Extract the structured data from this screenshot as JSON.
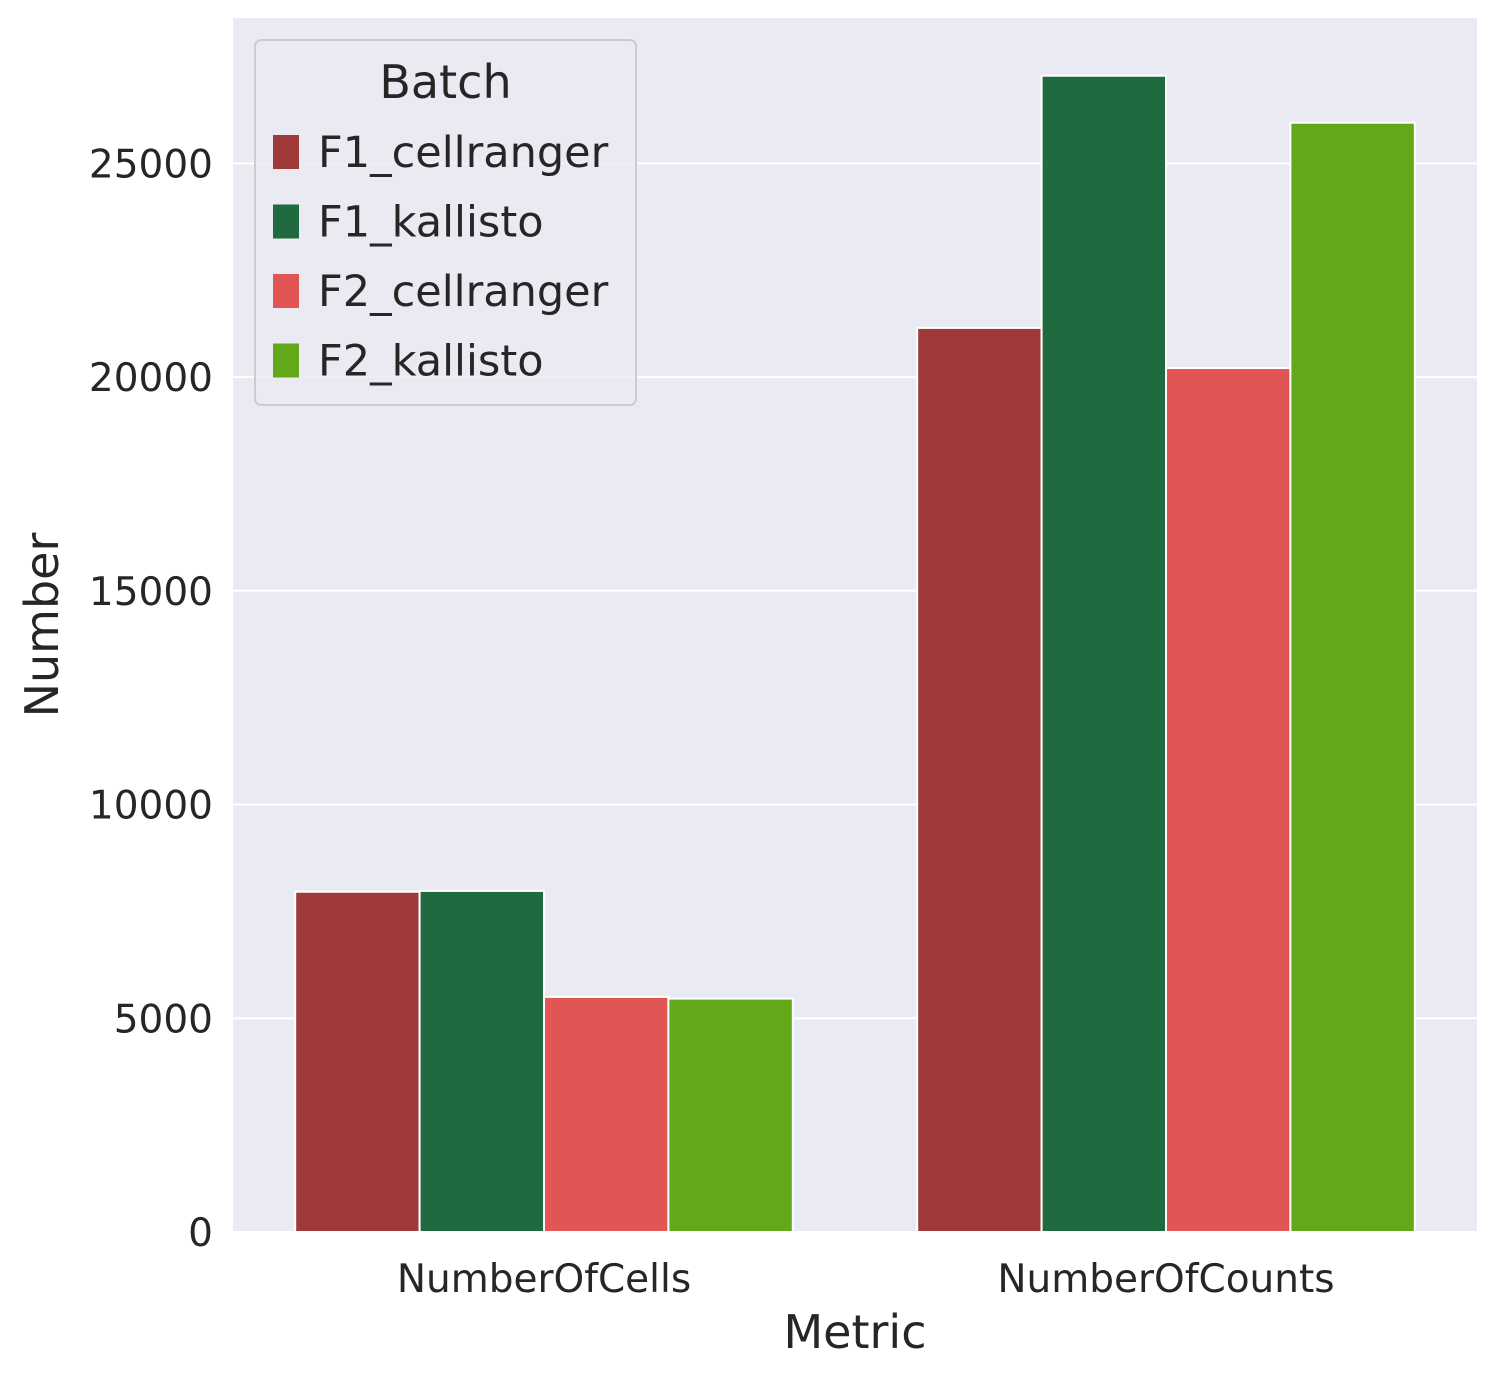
{
  "chart_data": {
    "type": "bar",
    "xlabel": "Metric",
    "ylabel": "Number",
    "categories": [
      "NumberOfCells",
      "NumberOfCounts"
    ],
    "series": [
      {
        "name": "F1_cellranger",
        "color": "#9e3a3a",
        "values": [
          7960,
          21150
        ]
      },
      {
        "name": "F1_kallisto",
        "color": "#1f6b3f",
        "values": [
          7980,
          27050
        ]
      },
      {
        "name": "F2_cellranger",
        "color": "#e25555",
        "values": [
          5500,
          20210
        ]
      },
      {
        "name": "F2_kallisto",
        "color": "#62a818",
        "values": [
          5460,
          25950
        ]
      }
    ],
    "ylim": [
      0,
      28400
    ],
    "yticks": [
      0,
      5000,
      10000,
      15000,
      20000,
      25000
    ],
    "ytick_labels": [
      "0",
      "5000",
      "10000",
      "15000",
      "20000",
      "25000"
    ],
    "grid": true,
    "legend": {
      "title": "Batch",
      "position": "top-left"
    },
    "style": {
      "background": "#eaeaf2",
      "grid_color": "#ffffff",
      "text_color": "#262626"
    }
  }
}
